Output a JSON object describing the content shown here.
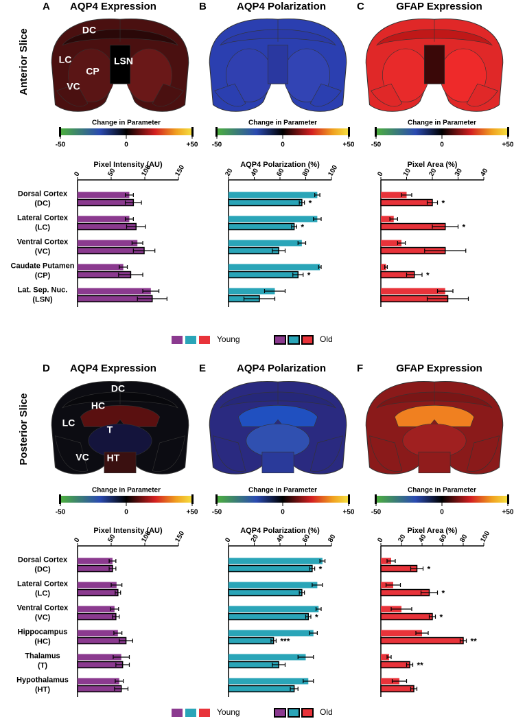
{
  "chart_data": [
    {
      "type": "bar",
      "orientation": "horizontal",
      "row_label": "Anterior Slice",
      "categories": [
        [
          "Dorsal Cortex",
          "(DC)"
        ],
        [
          "Lateral Cortex",
          "(LC)"
        ],
        [
          "Ventral Cortex",
          "(VC)"
        ],
        [
          "Caudate Putamen",
          "(CP)"
        ],
        [
          "Lat. Sep. Nuc.",
          "(LSN)"
        ]
      ],
      "maps": [
        {
          "letter": "A",
          "title": "AQP4 Expression",
          "regions": [
            "DC",
            "LC",
            "CP",
            "VC",
            "LSN"
          ]
        },
        {
          "letter": "B",
          "title": "AQP4 Polarization"
        },
        {
          "letter": "C",
          "title": "GFAP Expression"
        }
      ],
      "colorbar": {
        "label": "Change in Parameter",
        "lim": [
          -50,
          50
        ],
        "ticks": [
          -50,
          0,
          {
            "value": 50,
            "label": "+50"
          }
        ]
      },
      "panels": [
        {
          "xlabel": "Pixel Intensity (AU)",
          "xlim": [
            0,
            150
          ],
          "xticks": [
            0,
            50,
            100,
            150
          ],
          "series": [
            {
              "name": "Young",
              "color": "#8b3a8f",
              "values": [
                77,
                77,
                89,
                68,
                109
              ],
              "errors": [
                6,
                6,
                8,
                6,
                12
              ]
            },
            {
              "name": "Old",
              "color": "#8b3a8f",
              "values": [
                83,
                87,
                99,
                79,
                111
              ],
              "errors": [
                12,
                14,
                16,
                18,
                22
              ]
            }
          ]
        },
        {
          "xlabel": "AQP4 Polarization (%)",
          "xlim": [
            20,
            100
          ],
          "xticks": [
            20,
            40,
            60,
            80,
            100
          ],
          "series": [
            {
              "name": "Young",
              "color": "#2aa5b8",
              "values": [
                89,
                89,
                77,
                91,
                56
              ],
              "errors": [
                2,
                3,
                3,
                1,
                8
              ]
            },
            {
              "name": "Old",
              "color": "#2aa5b8",
              "values": [
                77,
                71,
                59,
                74,
                44
              ],
              "errors": [
                2,
                2,
                5,
                4,
                12
              ],
              "significance": [
                "*",
                "*",
                null,
                "*",
                null
              ]
            }
          ]
        },
        {
          "xlabel": "Pixel Area (%)",
          "xlim": [
            0,
            40
          ],
          "xticks": [
            0,
            10,
            20,
            30,
            40
          ],
          "series": [
            {
              "name": "Young",
              "color": "#e8333a",
              "values": [
                10,
                5,
                8,
                2,
                25
              ],
              "errors": [
                2,
                1.5,
                1.5,
                0.5,
                3
              ]
            },
            {
              "name": "Old",
              "color": "#e8333a",
              "values": [
                20,
                25,
                25,
                13,
                26
              ],
              "errors": [
                2,
                5,
                8,
                3,
                8
              ],
              "significance": [
                "*",
                "*",
                null,
                "*",
                null
              ]
            }
          ]
        }
      ]
    },
    {
      "type": "bar",
      "orientation": "horizontal",
      "row_label": "Posterior Slice",
      "categories": [
        [
          "Dorsal Cortex",
          "(DC)"
        ],
        [
          "Lateral Cortex",
          "(LC)"
        ],
        [
          "Ventral Cortex",
          "(VC)"
        ],
        [
          "Hippocampus",
          "(HC)"
        ],
        [
          "Thalamus",
          "(T)"
        ],
        [
          "Hypothalamus",
          "(HT)"
        ]
      ],
      "maps": [
        {
          "letter": "D",
          "title": "AQP4 Expression",
          "regions": [
            "DC",
            "HC",
            "LC",
            "T",
            "VC",
            "HT"
          ]
        },
        {
          "letter": "E",
          "title": "AQP4 Polarization"
        },
        {
          "letter": "F",
          "title": "GFAP Expression"
        }
      ],
      "colorbar": {
        "label": "Change in Parameter",
        "lim": [
          -50,
          50
        ],
        "ticks": [
          -50,
          0,
          {
            "value": 50,
            "label": "+50"
          }
        ]
      },
      "panels": [
        {
          "xlabel": "Pixel Intensity (AU)",
          "xlim": [
            0,
            150
          ],
          "xticks": [
            0,
            50,
            100,
            150
          ],
          "series": [
            {
              "name": "Young",
              "color": "#8b3a8f",
              "values": [
                52,
                58,
                55,
                60,
                65,
                62
              ],
              "errors": [
                5,
                8,
                6,
                6,
                12,
                6
              ]
            },
            {
              "name": "Old",
              "color": "#8b3a8f",
              "values": [
                52,
                60,
                57,
                72,
                67,
                65
              ],
              "errors": [
                5,
                4,
                5,
                10,
                10,
                10
              ]
            }
          ]
        },
        {
          "xlabel": "AQP4 Polarization (%)",
          "xlim": [
            0,
            80
          ],
          "xticks": [
            0,
            20,
            40,
            60,
            80
          ],
          "series": [
            {
              "name": "Young",
              "color": "#2aa5b8",
              "values": [
                73,
                69,
                70,
                66,
                60,
                62
              ],
              "errors": [
                2,
                4,
                2,
                3,
                6,
                4
              ]
            },
            {
              "name": "Old",
              "color": "#2aa5b8",
              "values": [
                65,
                57,
                62,
                35,
                39,
                51
              ],
              "errors": [
                2,
                2,
                2,
                2,
                5,
                3
              ],
              "significance": [
                "*",
                null,
                "*",
                "***",
                null,
                null
              ]
            }
          ]
        },
        {
          "xlabel": "Pixel Area (%)",
          "xlim": [
            0,
            100
          ],
          "xticks": [
            0,
            20,
            40,
            60,
            80,
            100
          ],
          "series": [
            {
              "name": "Young",
              "color": "#e8333a",
              "values": [
                10,
                12,
                20,
                40,
                8,
                18
              ],
              "errors": [
                4,
                7,
                10,
                6,
                2,
                7
              ]
            },
            {
              "name": "Old",
              "color": "#e8333a",
              "values": [
                35,
                47,
                50,
                80,
                28,
                32
              ],
              "errors": [
                6,
                8,
                3,
                3,
                3,
                3
              ],
              "significance": [
                "*",
                "*",
                "*",
                "**",
                "**",
                null
              ]
            }
          ]
        }
      ]
    }
  ]
}
